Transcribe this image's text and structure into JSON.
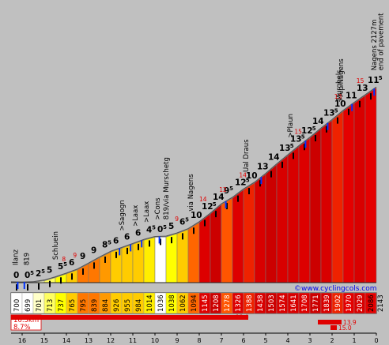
{
  "source": "©www.cyclingcols.com",
  "summary": {
    "distance": "16.5km",
    "average": "8.7%"
  },
  "chart_data": {
    "type": "area",
    "title": "",
    "xlabel": "",
    "ylabel": "",
    "x_unit": "km to summit",
    "xlim": [
      16.5,
      0
    ],
    "km_ticks": [
      "16",
      "15",
      "14",
      "13",
      "12",
      "11",
      "10",
      "9",
      "8",
      "7",
      "6",
      "5",
      "4",
      "3",
      "2",
      "1",
      "0"
    ],
    "segments": [
      {
        "start_km": 16.5,
        "alt_start": 700,
        "alt_end": 699,
        "gradient": "0",
        "frac": "",
        "color": "#ffffff"
      },
      {
        "start_km": 16.0,
        "alt_start": 699,
        "alt_end": 701,
        "gradient": "0",
        "frac": "5",
        "color": "#ffffff"
      },
      {
        "start_km": 15.5,
        "alt_start": 701,
        "alt_end": 713,
        "gradient": "2",
        "frac": "5",
        "color": "#ffffc8"
      },
      {
        "start_km": 15.0,
        "alt_start": 713,
        "alt_end": 737,
        "gradient": "5",
        "frac": "",
        "color": "#ffff60"
      },
      {
        "start_km": 14.5,
        "alt_start": 737,
        "alt_end": 765,
        "gradient": "5",
        "frac": "5",
        "color": "#ffff00"
      },
      {
        "start_km": 14.0,
        "alt_start": 765,
        "alt_end": 795,
        "gradient": "6",
        "frac": "",
        "color": "#ffcc00"
      },
      {
        "start_km": 13.5,
        "alt_start": 795,
        "alt_end": 839,
        "gradient": "9",
        "frac": "",
        "color": "#ff7700"
      },
      {
        "start_km": 13.0,
        "alt_start": 839,
        "alt_end": 884,
        "gradient": "9",
        "frac": "",
        "color": "#ff7700"
      },
      {
        "start_km": 12.5,
        "alt_start": 884,
        "alt_end": 926,
        "gradient": "8",
        "frac": "5",
        "color": "#ff9900"
      },
      {
        "start_km": 12.0,
        "alt_start": 926,
        "alt_end": 955,
        "gradient": "6",
        "frac": "",
        "color": "#ffcc00"
      },
      {
        "start_km": 11.5,
        "alt_start": 955,
        "alt_end": 984,
        "gradient": "6",
        "frac": "",
        "color": "#ffcc00"
      },
      {
        "start_km": 11.0,
        "alt_start": 984,
        "alt_end": 1014,
        "gradient": "6",
        "frac": "",
        "color": "#ffcc00"
      },
      {
        "start_km": 10.5,
        "alt_start": 1014,
        "alt_end": 1036,
        "gradient": "4",
        "frac": "5",
        "color": "#ffee00"
      },
      {
        "start_km": 10.0,
        "alt_start": 1036,
        "alt_end": 1038,
        "gradient": "0",
        "frac": "5",
        "color": "#ffffff"
      },
      {
        "start_km": 9.5,
        "alt_start": 1038,
        "alt_end": 1062,
        "gradient": "5",
        "frac": "",
        "color": "#ffff00"
      },
      {
        "start_km": 9.0,
        "alt_start": 1062,
        "alt_end": 1094,
        "gradient": "6",
        "frac": "5",
        "color": "#ffcc00"
      },
      {
        "start_km": 8.5,
        "alt_start": 1094,
        "alt_end": 1145,
        "gradient": "10",
        "frac": "",
        "color": "#ff6600"
      },
      {
        "start_km": 8.0,
        "alt_start": 1145,
        "alt_end": 1208,
        "gradient": "12",
        "frac": "5",
        "color": "#dd0000"
      },
      {
        "start_km": 7.5,
        "alt_start": 1208,
        "alt_end": 1278,
        "gradient": "14",
        "frac": "",
        "color": "#cc0000"
      },
      {
        "start_km": 7.0,
        "alt_start": 1278,
        "alt_end": 1326,
        "gradient": "9",
        "frac": "5",
        "color": "#ff5500"
      },
      {
        "start_km": 6.5,
        "alt_start": 1326,
        "alt_end": 1388,
        "gradient": "12",
        "frac": "5",
        "color": "#dd0000"
      },
      {
        "start_km": 6.0,
        "alt_start": 1388,
        "alt_end": 1438,
        "gradient": "10",
        "frac": "",
        "color": "#ee2200"
      },
      {
        "start_km": 5.5,
        "alt_start": 1438,
        "alt_end": 1503,
        "gradient": "13",
        "frac": "",
        "color": "#d80000"
      },
      {
        "start_km": 5.0,
        "alt_start": 1503,
        "alt_end": 1574,
        "gradient": "14",
        "frac": "",
        "color": "#cc0000"
      },
      {
        "start_km": 4.5,
        "alt_start": 1574,
        "alt_end": 1641,
        "gradient": "13",
        "frac": "5",
        "color": "#d80000"
      },
      {
        "start_km": 4.0,
        "alt_start": 1641,
        "alt_end": 1708,
        "gradient": "13",
        "frac": "5",
        "color": "#d80000"
      },
      {
        "start_km": 3.5,
        "alt_start": 1708,
        "alt_end": 1771,
        "gradient": "12",
        "frac": "5",
        "color": "#dd0000"
      },
      {
        "start_km": 3.0,
        "alt_start": 1771,
        "alt_end": 1839,
        "gradient": "14",
        "frac": "",
        "color": "#cc0000"
      },
      {
        "start_km": 2.5,
        "alt_start": 1839,
        "alt_end": 1902,
        "gradient": "13",
        "frac": "5",
        "color": "#d80000"
      },
      {
        "start_km": 2.0,
        "alt_start": 1902,
        "alt_end": 1970,
        "gradient": "10",
        "frac": "",
        "color": "#ee2200"
      },
      {
        "start_km": 1.5,
        "alt_start": 1970,
        "alt_end": 2029,
        "gradient": "11",
        "frac": "",
        "color": "#e40000"
      },
      {
        "start_km": 1.0,
        "alt_start": 2029,
        "alt_end": 2086,
        "gradient": "13",
        "frac": "",
        "color": "#d80000"
      },
      {
        "start_km": 0.5,
        "alt_start": 2086,
        "alt_end": 2143,
        "gradient": "11",
        "frac": "5",
        "color": "#e40000"
      }
    ],
    "altitudes": [
      "700",
      "699",
      "701",
      "713",
      "737",
      "765",
      "795",
      "839",
      "884",
      "926",
      "955",
      "984",
      "1014",
      "1036",
      "1038",
      "1062",
      "1094",
      "1145",
      "1208",
      "1278",
      "1326",
      "1388",
      "1438",
      "1503",
      "1574",
      "1641",
      "1708",
      "1771",
      "1839",
      "1902",
      "1970",
      "2029",
      "2086",
      "2143"
    ],
    "places": [
      {
        "km": 16.3,
        "alt": 700,
        "label": "Ilanz"
      },
      {
        "km": 15.8,
        "alt": 699,
        "label": "819"
      },
      {
        "km": 14.5,
        "alt": 740,
        "label": "Schluein"
      },
      {
        "km": 11.5,
        "alt": 955,
        "label": ">Sagogn"
      },
      {
        "km": 10.9,
        "alt": 987,
        "label": ">Laax"
      },
      {
        "km": 10.4,
        "alt": 1016,
        "label": ">Laax"
      },
      {
        "km": 9.9,
        "alt": 1036,
        "label": ">Cons"
      },
      {
        "km": 9.5,
        "alt": 1038,
        "label": "819/via Murschetg"
      },
      {
        "km": 8.4,
        "alt": 1100,
        "label": "via Nagens"
      },
      {
        "km": 5.9,
        "alt": 1390,
        "label": "Ual Draus"
      },
      {
        "km": 3.9,
        "alt": 1644,
        "label": ">Plaun"
      },
      {
        "km": 1.6,
        "alt": 1906,
        "label": ">Alp Nagens"
      },
      {
        "km": 1.7,
        "alt": 1920,
        "label": "Murghels"
      },
      {
        "km": 0.1,
        "alt": 2143,
        "label": "Nagens 2127m"
      },
      {
        "km": -0.2,
        "alt": 2143,
        "label": "end of pavement"
      }
    ],
    "max_gradient_markers": [
      {
        "km": 14.2,
        "value": "8"
      },
      {
        "km": 13.7,
        "value": "9"
      },
      {
        "km": 9.1,
        "value": "9"
      },
      {
        "km": 8.0,
        "value": "14"
      },
      {
        "km": 7.1,
        "value": "12"
      },
      {
        "km": 6.2,
        "value": "14"
      },
      {
        "km": 3.7,
        "value": "15"
      },
      {
        "km": 1.9,
        "value": "13"
      },
      {
        "km": 0.9,
        "value": "15"
      }
    ],
    "bottom_bars": [
      "13.0",
      "13.9",
      "15.0"
    ]
  }
}
